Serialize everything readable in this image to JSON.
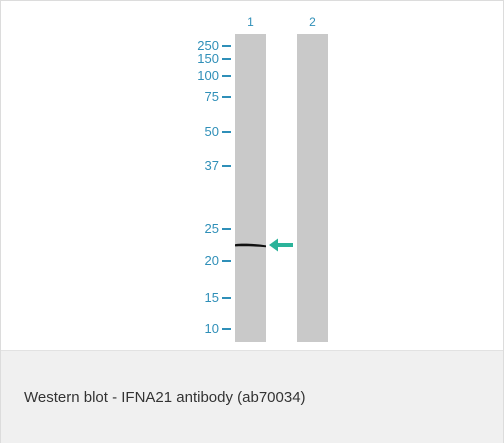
{
  "figure": {
    "lanes": [
      {
        "label": "1"
      },
      {
        "label": "2"
      }
    ],
    "markers": [
      {
        "label": "250",
        "kda": 250
      },
      {
        "label": "150",
        "kda": 150
      },
      {
        "label": "100",
        "kda": 100
      },
      {
        "label": "75",
        "kda": 75
      },
      {
        "label": "50",
        "kda": 50
      },
      {
        "label": "37",
        "kda": 37
      },
      {
        "label": "25",
        "kda": 25
      },
      {
        "label": "20",
        "kda": 20
      },
      {
        "label": "15",
        "kda": 15
      },
      {
        "label": "10",
        "kda": 10
      }
    ],
    "band_lane": 1,
    "colors": {
      "marker_text": "#2f8fb8",
      "lane_fill": "#c9c9c9",
      "band": "#111111",
      "arrow": "#2bb39a",
      "caption_bg": "#f0f0f0"
    },
    "arrow_icon": "left-arrow-icon"
  },
  "caption": {
    "text": "Western blot - IFNA21 antibody (ab70034)"
  }
}
